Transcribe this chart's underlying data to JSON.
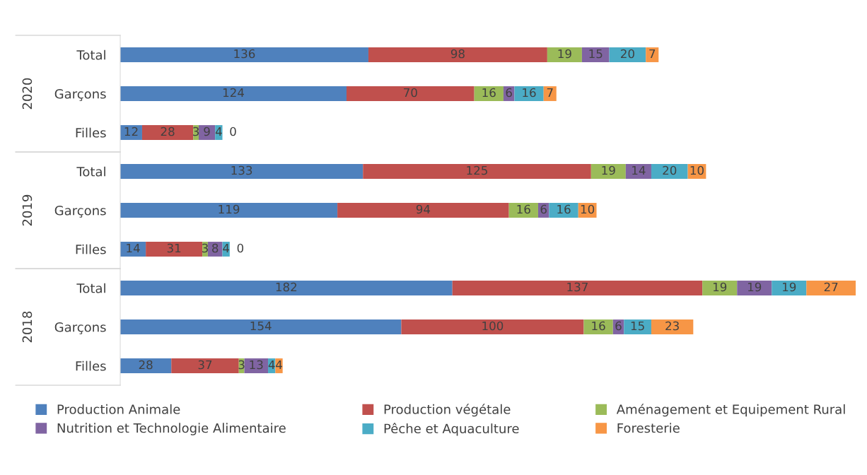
{
  "chart_data": {
    "type": "bar",
    "orientation": "horizontal",
    "stacked": true,
    "data_labels": true,
    "legend": "bottom",
    "grid": false,
    "categories": [
      "Total",
      "Garçons",
      "Filles",
      "Total",
      "Garçons",
      "Filles",
      "Total",
      "Garçons",
      "Filles"
    ],
    "annotations": [
      "2020",
      "2019",
      "2018"
    ],
    "series": [
      {
        "name": "Production Animale",
        "color": "#4f81bd",
        "values": [
          136,
          124,
          12,
          133,
          119,
          14,
          182,
          154,
          28
        ]
      },
      {
        "name": "Production végétale",
        "color": "#c0504d",
        "values": [
          98,
          70,
          28,
          125,
          94,
          31,
          137,
          100,
          37
        ]
      },
      {
        "name": "Aménagement et Equipement Rural",
        "color": "#9bbb59",
        "values": [
          19,
          16,
          3,
          19,
          16,
          3,
          19,
          16,
          3
        ]
      },
      {
        "name": "Nutrition et Technologie Alimentaire",
        "color": "#8064a2",
        "values": [
          15,
          6,
          9,
          14,
          6,
          8,
          19,
          6,
          13
        ]
      },
      {
        "name": "Pêche et Aquaculture",
        "color": "#4bacc6",
        "values": [
          20,
          16,
          4,
          20,
          16,
          4,
          19,
          15,
          4
        ]
      },
      {
        "name": "Foresterie",
        "color": "#f79646",
        "values": [
          7,
          7,
          0,
          10,
          10,
          0,
          27,
          23,
          4
        ]
      }
    ]
  }
}
